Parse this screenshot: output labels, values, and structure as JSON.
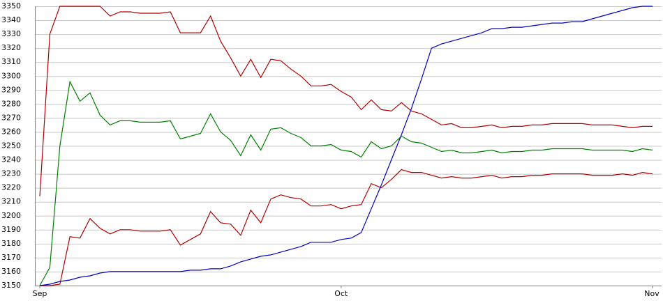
{
  "chart_data": {
    "type": "line",
    "categories": [
      "Sep",
      null,
      null,
      null,
      null,
      null,
      null,
      null,
      null,
      null,
      null,
      null,
      null,
      null,
      null,
      null,
      null,
      null,
      null,
      null,
      null,
      null,
      null,
      null,
      null,
      null,
      null,
      null,
      null,
      null,
      "Oct",
      null,
      null,
      null,
      null,
      null,
      null,
      null,
      null,
      null,
      null,
      null,
      null,
      null,
      null,
      null,
      null,
      null,
      null,
      null,
      null,
      null,
      null,
      null,
      null,
      null,
      null,
      null,
      null,
      null,
      null,
      "Nov"
    ],
    "series": [
      {
        "color": "#b00000",
        "values": [
          3214,
          3330,
          3350,
          3350,
          3350,
          3350,
          3350,
          3343,
          3346,
          3346,
          3345,
          3345,
          3345,
          3346,
          3331,
          3331,
          3331,
          3343,
          3325,
          3313,
          3300,
          3312,
          3299,
          3312,
          3311,
          3305,
          3300,
          3293,
          3293,
          3294,
          3289,
          3285,
          3276,
          3283,
          3276,
          3275,
          3281,
          3275,
          3273,
          3269,
          3265,
          3266,
          3263,
          3263,
          3264,
          3265,
          3263,
          3264,
          3264,
          3265,
          3265,
          3266,
          3266,
          3266,
          3266,
          3265,
          3265,
          3265,
          3264,
          3263,
          3264,
          3264
        ]
      },
      {
        "color": "#008000",
        "values": [
          3150,
          3163,
          3250,
          3296,
          3282,
          3288,
          3272,
          3265,
          3268,
          3268,
          3267,
          3267,
          3267,
          3268,
          3255,
          3257,
          3259,
          3273,
          3260,
          3254,
          3243,
          3258,
          3247,
          3262,
          3263,
          3259,
          3256,
          3250,
          3250,
          3251,
          3247,
          3246,
          3242,
          3253,
          3248,
          3250,
          3257,
          3253,
          3252,
          3249,
          3246,
          3247,
          3245,
          3245,
          3246,
          3247,
          3245,
          3246,
          3246,
          3247,
          3247,
          3248,
          3248,
          3248,
          3248,
          3247,
          3247,
          3247,
          3247,
          3246,
          3248,
          3247
        ]
      },
      {
        "color": "#b00000",
        "values": [
          3150,
          3150,
          3151,
          3185,
          3184,
          3198,
          3191,
          3187,
          3190,
          3190,
          3189,
          3189,
          3189,
          3190,
          3179,
          3183,
          3187,
          3203,
          3195,
          3194,
          3186,
          3204,
          3195,
          3212,
          3215,
          3213,
          3212,
          3207,
          3207,
          3208,
          3205,
          3207,
          3208,
          3223,
          3220,
          3226,
          3233,
          3231,
          3231,
          3229,
          3227,
          3228,
          3227,
          3227,
          3228,
          3229,
          3227,
          3228,
          3228,
          3229,
          3229,
          3230,
          3230,
          3230,
          3230,
          3229,
          3229,
          3229,
          3230,
          3229,
          3231,
          3230
        ]
      },
      {
        "color": "#0000c0",
        "values": [
          3150,
          3151,
          3153,
          3154,
          3156,
          3157,
          3159,
          3160,
          3160,
          3160,
          3160,
          3160,
          3160,
          3160,
          3160,
          3161,
          3161,
          3162,
          3162,
          3164,
          3167,
          3169,
          3171,
          3172,
          3174,
          3176,
          3178,
          3181,
          3181,
          3181,
          3183,
          3184,
          3188,
          3205,
          3222,
          3240,
          3258,
          3277,
          3298,
          3320,
          3323,
          3325,
          3327,
          3329,
          3331,
          3334,
          3334,
          3335,
          3335,
          3336,
          3337,
          3338,
          3338,
          3339,
          3339,
          3341,
          3343,
          3345,
          3347,
          3349,
          3350,
          3350
        ]
      }
    ],
    "ylim": [
      3150,
      3350
    ],
    "yticks": [
      3150,
      3160,
      3170,
      3180,
      3190,
      3200,
      3210,
      3220,
      3230,
      3240,
      3250,
      3260,
      3270,
      3280,
      3290,
      3300,
      3310,
      3320,
      3330,
      3340,
      3350
    ],
    "grid": true
  }
}
